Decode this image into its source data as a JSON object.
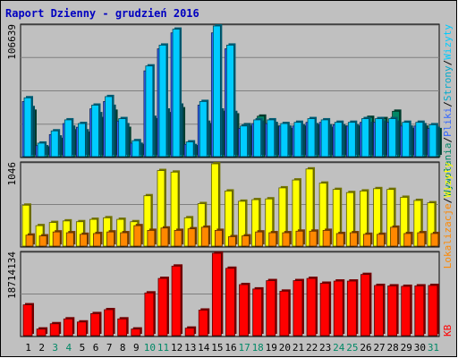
{
  "title": "Raport Dzienny -  grudzień 2016",
  "colors": {
    "background": "#C0C0C0",
    "border": "#000000",
    "title": "#0000C0",
    "visits": "#008866",
    "pages": "#00AACC",
    "files": "#3366FF",
    "hits": "#00CCFF",
    "sites": "#FFFF00",
    "visits_y": "#CC9900",
    "locations": "#FF8800",
    "kb": "#FF0000",
    "weekend": "#008866",
    "weekday": "#000000"
  },
  "right_legend": {
    "top": [
      "Wywołania",
      "/",
      "Pliki",
      "/",
      "Strony",
      "/",
      "Wizyty"
    ],
    "middle": [
      "Lokalizacje",
      "/",
      "Wizyty"
    ],
    "bottom": [
      "KB"
    ]
  },
  "chart_data": [
    {
      "type": "bar",
      "title": "Raport Dzienny -  grudzień 2016",
      "ylabel": "106639",
      "ylim": [
        0,
        106639
      ],
      "categories": [
        "1",
        "2",
        "3",
        "4",
        "5",
        "6",
        "7",
        "8",
        "9",
        "10",
        "11",
        "12",
        "13",
        "14",
        "15",
        "16",
        "17",
        "18",
        "19",
        "20",
        "21",
        "22",
        "23",
        "24",
        "25",
        "26",
        "27",
        "28",
        "29",
        "30",
        "31"
      ],
      "weekend_days": [
        "3",
        "4",
        "10",
        "11",
        "17",
        "18",
        "24",
        "25",
        "31"
      ],
      "series": [
        {
          "name": "Wywołania",
          "values": [
            48000,
            11000,
            21000,
            30000,
            27000,
            42000,
            49000,
            31000,
            13000,
            74000,
            91000,
            104000,
            12000,
            45000,
            106639,
            91000,
            25000,
            30000,
            30000,
            27000,
            28000,
            31000,
            30000,
            28000,
            28000,
            31000,
            31000,
            31000,
            28000,
            28000,
            26000
          ]
        },
        {
          "name": "Pliki",
          "values": [
            45000,
            9000,
            18000,
            27000,
            24000,
            39000,
            45000,
            29000,
            11000,
            70000,
            88000,
            101000,
            10000,
            42000,
            101000,
            88000,
            23000,
            27000,
            27000,
            25000,
            25000,
            28000,
            28000,
            26000,
            25000,
            28000,
            28000,
            28000,
            25000,
            25000,
            23000
          ]
        },
        {
          "name": "Strony",
          "values": [
            40000,
            8000,
            16000,
            24000,
            21000,
            35000,
            41000,
            26000,
            10000,
            32000,
            38000,
            42000,
            9000,
            28000,
            38000,
            36000,
            26000,
            28000,
            27000,
            24000,
            25000,
            26000,
            25000,
            25000,
            25000,
            27000,
            28000,
            28000,
            24000,
            26000,
            23000
          ]
        },
        {
          "name": "Wizyty",
          "values": [
            37000,
            7000,
            14000,
            21000,
            19000,
            31000,
            37000,
            23000,
            9000,
            30000,
            35000,
            39000,
            8000,
            26000,
            36000,
            34000,
            24000,
            33000,
            24000,
            22000,
            24000,
            25000,
            23000,
            24000,
            24000,
            32000,
            31000,
            37000,
            22000,
            24000,
            22000
          ]
        }
      ]
    },
    {
      "type": "bar",
      "ylabel": "1046",
      "ylim": [
        0,
        1046
      ],
      "categories": [
        "1",
        "2",
        "3",
        "4",
        "5",
        "6",
        "7",
        "8",
        "9",
        "10",
        "11",
        "12",
        "13",
        "14",
        "15",
        "16",
        "17",
        "18",
        "19",
        "20",
        "21",
        "22",
        "23",
        "24",
        "25",
        "26",
        "27",
        "28",
        "29",
        "30",
        "31"
      ],
      "series": [
        {
          "name": "Lokalizacje",
          "values": [
            520,
            260,
            300,
            320,
            310,
            340,
            360,
            340,
            310,
            640,
            960,
            940,
            360,
            540,
            1046,
            700,
            570,
            590,
            600,
            740,
            840,
            980,
            800,
            720,
            680,
            700,
            730,
            720,
            620,
            580,
            550
          ]
        },
        {
          "name": "Wizyty",
          "values": [
            140,
            130,
            180,
            170,
            150,
            160,
            180,
            170,
            260,
            200,
            230,
            200,
            220,
            240,
            200,
            120,
            130,
            180,
            170,
            170,
            190,
            190,
            200,
            160,
            170,
            150,
            150,
            240,
            160,
            170,
            160
          ]
        }
      ]
    },
    {
      "type": "bar",
      "ylabel": "18714134",
      "ylim": [
        0,
        18714134
      ],
      "categories": [
        "1",
        "2",
        "3",
        "4",
        "5",
        "6",
        "7",
        "8",
        "9",
        "10",
        "11",
        "12",
        "13",
        "14",
        "15",
        "16",
        "17",
        "18",
        "19",
        "20",
        "21",
        "22",
        "23",
        "24",
        "25",
        "26",
        "27",
        "28",
        "29",
        "30",
        "31"
      ],
      "series": [
        {
          "name": "KB",
          "values": [
            7000000,
            1500000,
            2700000,
            3800000,
            3100000,
            5000000,
            5900000,
            3800000,
            1500000,
            9700000,
            13000000,
            15800000,
            1700000,
            5800000,
            18714134,
            15300000,
            11600000,
            10600000,
            12500000,
            10100000,
            12500000,
            13000000,
            11900000,
            12400000,
            12400000,
            13900000,
            11400000,
            11300000,
            11200000,
            11300000,
            11400000
          ]
        }
      ]
    }
  ]
}
